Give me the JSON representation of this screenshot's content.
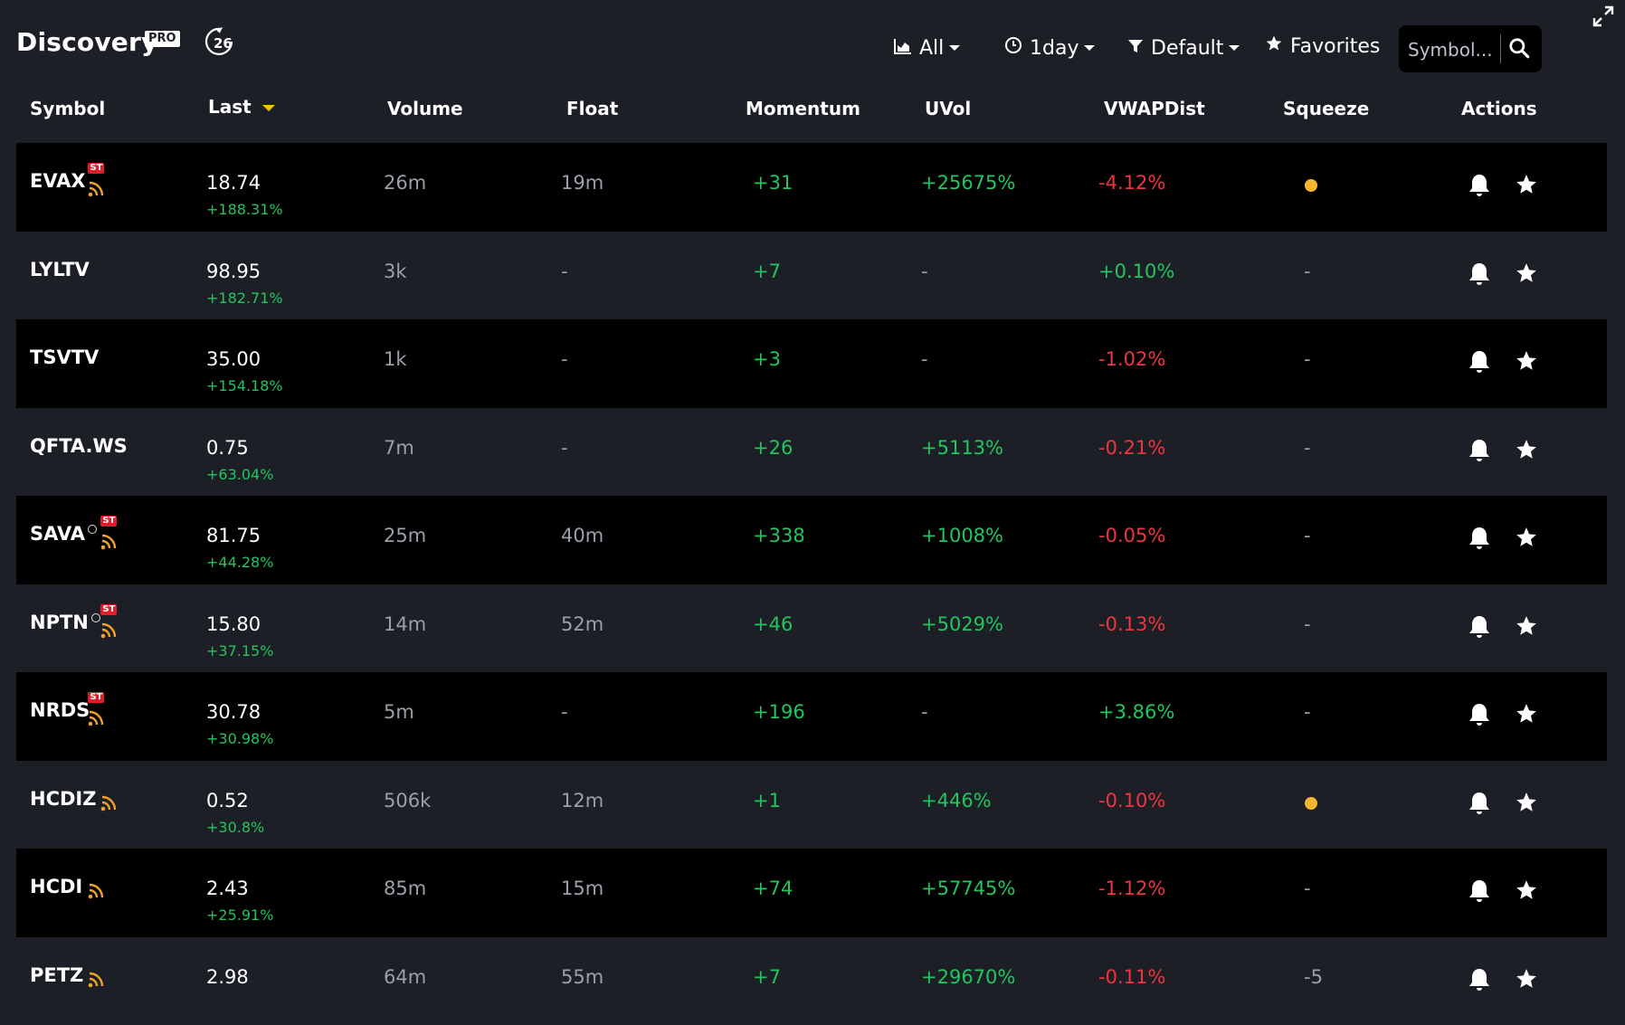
{
  "header": {
    "title": "Discovery",
    "badge": "PRO",
    "refresh_count": "26",
    "filter_all": "All",
    "filter_time": "1day",
    "filter_default": "Default",
    "favorites": "Favorites",
    "search_placeholder": "Symbol..."
  },
  "columns": [
    "Symbol",
    "Last",
    "Volume",
    "Float",
    "Momentum",
    "UVol",
    "VWAPDist",
    "Squeeze",
    "Actions"
  ],
  "rows": [
    {
      "symbol": "EVAX",
      "circle": false,
      "st": true,
      "rss": true,
      "last": "18.74",
      "change": "+188.31%",
      "volume": "26m",
      "float": "19m",
      "momentum": "+31",
      "uvol": "+25675%",
      "vwap": "-4.12%",
      "vwap_color": "red",
      "squeeze": "dot"
    },
    {
      "symbol": "LYLTV",
      "circle": false,
      "st": false,
      "rss": false,
      "last": "98.95",
      "change": "+182.71%",
      "volume": "3k",
      "float": "-",
      "momentum": "+7",
      "uvol": "-",
      "vwap": "+0.10%",
      "vwap_color": "green",
      "squeeze": "-"
    },
    {
      "symbol": "TSVTV",
      "circle": false,
      "st": false,
      "rss": false,
      "last": "35.00",
      "change": "+154.18%",
      "volume": "1k",
      "float": "-",
      "momentum": "+3",
      "uvol": "-",
      "vwap": "-1.02%",
      "vwap_color": "red",
      "squeeze": "-"
    },
    {
      "symbol": "QFTA.WS",
      "circle": false,
      "st": false,
      "rss": false,
      "last": "0.75",
      "change": "+63.04%",
      "volume": "7m",
      "float": "-",
      "momentum": "+26",
      "uvol": "+5113%",
      "vwap": "-0.21%",
      "vwap_color": "red",
      "squeeze": "-"
    },
    {
      "symbol": "SAVA",
      "circle": true,
      "st": true,
      "rss": true,
      "last": "81.75",
      "change": "+44.28%",
      "volume": "25m",
      "float": "40m",
      "momentum": "+338",
      "uvol": "+1008%",
      "vwap": "-0.05%",
      "vwap_color": "red",
      "squeeze": "-"
    },
    {
      "symbol": "NPTN",
      "circle": true,
      "st": true,
      "rss": true,
      "last": "15.80",
      "change": "+37.15%",
      "volume": "14m",
      "float": "52m",
      "momentum": "+46",
      "uvol": "+5029%",
      "vwap": "-0.13%",
      "vwap_color": "red",
      "squeeze": "-"
    },
    {
      "symbol": "NRDS",
      "circle": false,
      "st": true,
      "rss": true,
      "last": "30.78",
      "change": "+30.98%",
      "volume": "5m",
      "float": "-",
      "momentum": "+196",
      "uvol": "-",
      "vwap": "+3.86%",
      "vwap_color": "green",
      "squeeze": "-"
    },
    {
      "symbol": "HCDIZ",
      "circle": false,
      "st": false,
      "rss": true,
      "last": "0.52",
      "change": "+30.8%",
      "volume": "506k",
      "float": "12m",
      "momentum": "+1",
      "uvol": "+446%",
      "vwap": "-0.10%",
      "vwap_color": "red",
      "squeeze": "dot"
    },
    {
      "symbol": "HCDI",
      "circle": false,
      "st": false,
      "rss": true,
      "last": "2.43",
      "change": "+25.91%",
      "volume": "85m",
      "float": "15m",
      "momentum": "+74",
      "uvol": "+57745%",
      "vwap": "-1.12%",
      "vwap_color": "red",
      "squeeze": "-"
    },
    {
      "symbol": "PETZ",
      "circle": false,
      "st": false,
      "rss": true,
      "last": "2.98",
      "change": "",
      "volume": "64m",
      "float": "55m",
      "momentum": "+7",
      "uvol": "+29670%",
      "vwap": "-0.11%",
      "vwap_color": "red",
      "squeeze": "-5"
    }
  ],
  "colors": {
    "positive": "#22c55e",
    "negative": "#f0343f",
    "squeeze_dot": "#f5b731",
    "sort_caret": "#f5c400",
    "st_badge": "#e01e2a",
    "rss": "#f0a030"
  }
}
